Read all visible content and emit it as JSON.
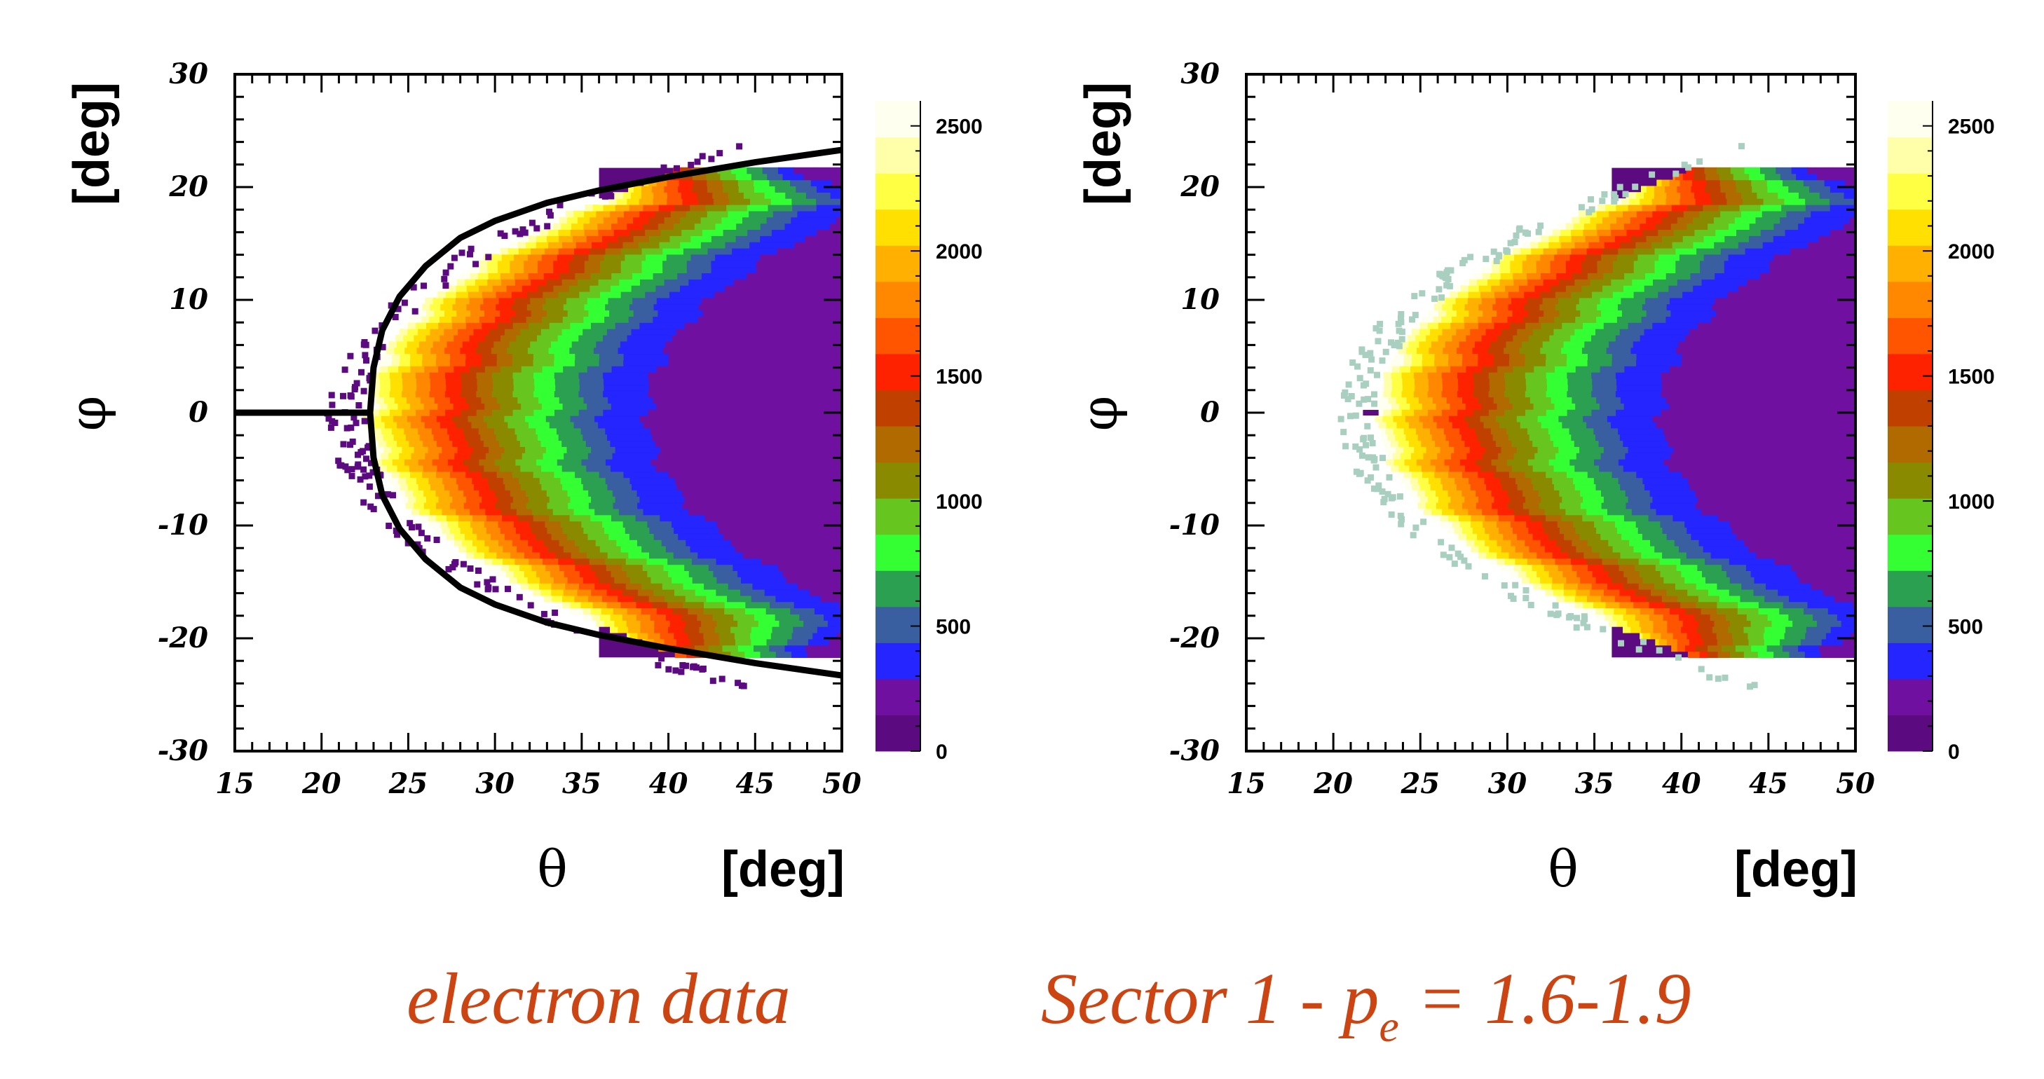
{
  "chart_data": [
    {
      "type": "heatmap",
      "x_ticks": [
        15,
        20,
        25,
        30,
        35,
        40,
        45,
        50
      ],
      "y_ticks": [
        -30,
        -20,
        -10,
        0,
        10,
        20,
        30
      ],
      "xlim": [
        15,
        50
      ],
      "ylim": [
        -30,
        30
      ],
      "xlabel_symbol": "θ",
      "xlabel_unit": "[deg]",
      "ylabel_symbol": "φ",
      "ylabel_unit": "[deg]",
      "zlim": [
        0,
        2600
      ],
      "colorbar_ticks": [
        0,
        500,
        1000,
        1500,
        2000,
        2500
      ],
      "fiducial_cut_overlay": true,
      "fiducial_cut": {
        "theta": [
          15,
          22.8,
          23.0,
          23.5,
          24.5,
          26,
          28,
          30,
          33,
          36,
          40,
          45,
          50
        ],
        "phi_upper": [
          0,
          0,
          4.0,
          7.3,
          10.3,
          13.0,
          15.5,
          17.0,
          18.6,
          19.7,
          20.9,
          22.2,
          23.3
        ],
        "phi_lower": [
          0,
          0,
          -4.0,
          -7.3,
          -10.3,
          -13.0,
          -15.5,
          -17.0,
          -18.6,
          -19.7,
          -20.9,
          -22.2,
          -23.3
        ]
      }
    },
    {
      "type": "heatmap",
      "x_ticks": [
        15,
        20,
        25,
        30,
        35,
        40,
        45,
        50
      ],
      "y_ticks": [
        -30,
        -20,
        -10,
        0,
        10,
        20,
        30
      ],
      "xlim": [
        15,
        50
      ],
      "ylim": [
        -30,
        30
      ],
      "xlabel_symbol": "θ",
      "xlabel_unit": "[deg]",
      "ylabel_symbol": "φ",
      "ylabel_unit": "[deg]",
      "zlim": [
        0,
        2600
      ],
      "colorbar_ticks": [
        0,
        500,
        1000,
        1500,
        2000,
        2500
      ],
      "fiducial_cut_overlay": false
    }
  ],
  "caption": {
    "left": "electron data",
    "right_main": "Sector 1 - p",
    "right_sub": "e",
    "right_tail": " = 1.6-1.9"
  },
  "colors": {
    "palette": [
      "#5c0a80",
      "#6f10a0",
      "#2525ff",
      "#3a5fa0",
      "#2aa050",
      "#33ff33",
      "#66c51f",
      "#8a8a00",
      "#b06a00",
      "#c04000",
      "#ff2200",
      "#ff5500",
      "#ff8800",
      "#ffb000",
      "#ffe000",
      "#ffff44",
      "#ffffaa",
      "#fffff0"
    ],
    "caption": "#cc4411"
  }
}
